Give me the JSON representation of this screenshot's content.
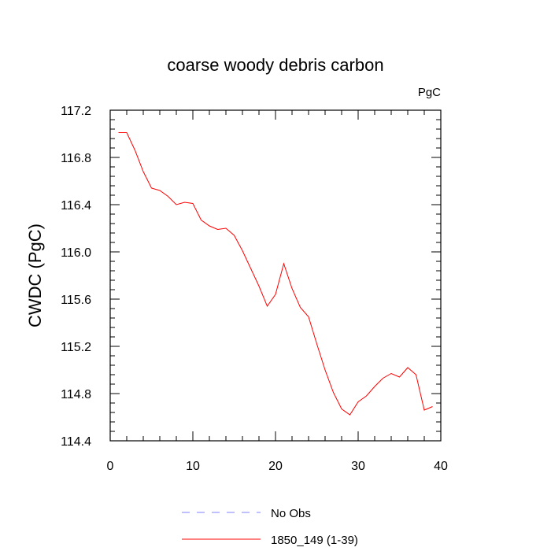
{
  "chart_data": {
    "type": "line",
    "title": "coarse woody debris carbon",
    "units": "PgC",
    "ylabel": "CWDC  (PgC)",
    "xlabel": "",
    "xlim": [
      0,
      40
    ],
    "ylim": [
      114.4,
      117.2
    ],
    "xticks": [
      0,
      10,
      20,
      30,
      40
    ],
    "yticks": [
      114.4,
      114.8,
      115.2,
      115.6,
      116.0,
      116.4,
      116.8,
      117.2
    ],
    "xtick_labels": [
      "0",
      "10",
      "20",
      "30",
      "40"
    ],
    "ytick_labels": [
      "114.4",
      "114.8",
      "115.2",
      "115.6",
      "116.0",
      "116.4",
      "116.8",
      "117.2"
    ],
    "grid": false,
    "legend_position": "bottom",
    "series": [
      {
        "name": "No Obs",
        "color": "#8080ff",
        "dash": true,
        "x": [],
        "y": []
      },
      {
        "name": "1850_149 (1-39)",
        "color": "#ff0000",
        "dash": false,
        "x": [
          1,
          2,
          3,
          4,
          5,
          6,
          7,
          8,
          9,
          10,
          11,
          12,
          13,
          14,
          15,
          16,
          17,
          18,
          19,
          20,
          21,
          22,
          23,
          24,
          25,
          26,
          27,
          28,
          29,
          30,
          31,
          32,
          33,
          34,
          35,
          36,
          37,
          38,
          39
        ],
        "y": [
          117.01,
          117.01,
          116.86,
          116.68,
          116.54,
          116.52,
          116.47,
          116.4,
          116.42,
          116.41,
          116.27,
          116.22,
          116.19,
          116.2,
          116.14,
          116.01,
          115.86,
          115.71,
          115.54,
          115.64,
          115.9,
          115.69,
          115.53,
          115.45,
          115.22,
          115.0,
          114.81,
          114.67,
          114.62,
          114.73,
          114.78,
          114.86,
          114.93,
          114.97,
          114.94,
          115.02,
          114.96,
          114.66,
          114.69
        ]
      }
    ]
  }
}
